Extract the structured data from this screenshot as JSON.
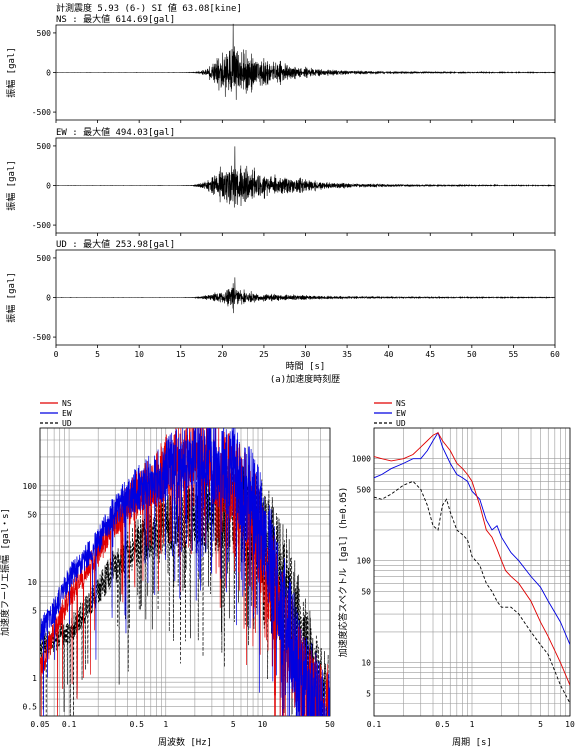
{
  "header": {
    "line1": "計測震度 5.93 (6-)  SI 値  63.08[kine]"
  },
  "chart_data": [
    {
      "type": "line",
      "panel": "NS",
      "label": "NS : 最大値    614.69[gal]",
      "ylabel": "振幅 [gal]",
      "ylim": [
        -600,
        600
      ],
      "yticks": [
        -500,
        0,
        500
      ],
      "xlim": [
        0,
        60
      ],
      "onset": 16,
      "peak_time": 21.3,
      "peak": 614.69,
      "envelope": [
        [
          0,
          0.4
        ],
        [
          15,
          0.5
        ],
        [
          16.5,
          4
        ],
        [
          18,
          60
        ],
        [
          19,
          200
        ],
        [
          20,
          360
        ],
        [
          21,
          480
        ],
        [
          21.3,
          614.69
        ],
        [
          22,
          420
        ],
        [
          23,
          330
        ],
        [
          24,
          290
        ],
        [
          25,
          250
        ],
        [
          26,
          200
        ],
        [
          27,
          170
        ],
        [
          28,
          130
        ],
        [
          30,
          85
        ],
        [
          33,
          50
        ],
        [
          36,
          32
        ],
        [
          40,
          22
        ],
        [
          45,
          14
        ],
        [
          50,
          10
        ],
        [
          55,
          7
        ],
        [
          60,
          5
        ]
      ],
      "seed": 11
    },
    {
      "type": "line",
      "panel": "EW",
      "label": "EW : 最大値    494.03[gal]",
      "ylabel": "振幅 [gal]",
      "ylim": [
        -600,
        600
      ],
      "yticks": [
        -500,
        0,
        500
      ],
      "xlim": [
        0,
        60
      ],
      "onset": 16,
      "peak_time": 21.5,
      "peak": 494.03,
      "envelope": [
        [
          0,
          0.4
        ],
        [
          15,
          0.5
        ],
        [
          16.5,
          4
        ],
        [
          18,
          70
        ],
        [
          19,
          180
        ],
        [
          20,
          300
        ],
        [
          21,
          420
        ],
        [
          21.5,
          494.03
        ],
        [
          22,
          380
        ],
        [
          23,
          330
        ],
        [
          24,
          290
        ],
        [
          25,
          250
        ],
        [
          26,
          210
        ],
        [
          27,
          180
        ],
        [
          28,
          150
        ],
        [
          30,
          100
        ],
        [
          33,
          60
        ],
        [
          36,
          38
        ],
        [
          40,
          25
        ],
        [
          45,
          16
        ],
        [
          50,
          11
        ],
        [
          55,
          8
        ],
        [
          60,
          6
        ]
      ],
      "seed": 23
    },
    {
      "type": "line",
      "panel": "UD",
      "label": "UD : 最大値    253.98[gal]",
      "ylabel": "振幅 [gal]",
      "ylim": [
        -600,
        600
      ],
      "yticks": [
        -500,
        0,
        500
      ],
      "xlim": [
        0,
        60
      ],
      "xticks": [
        0,
        5,
        10,
        15,
        20,
        25,
        30,
        35,
        40,
        45,
        50,
        55,
        60
      ],
      "xlabel": "時間 [s]",
      "onset": 16,
      "peak_time": 21.5,
      "peak": 253.98,
      "envelope": [
        [
          0,
          0.3
        ],
        [
          15,
          0.4
        ],
        [
          16.5,
          3
        ],
        [
          18,
          40
        ],
        [
          19,
          80
        ],
        [
          20,
          120
        ],
        [
          21,
          170
        ],
        [
          21.5,
          253.98
        ],
        [
          22,
          150
        ],
        [
          23,
          110
        ],
        [
          24,
          90
        ],
        [
          25,
          70
        ],
        [
          27,
          55
        ],
        [
          30,
          40
        ],
        [
          33,
          30
        ],
        [
          36,
          22
        ],
        [
          40,
          16
        ],
        [
          45,
          12
        ],
        [
          50,
          9
        ],
        [
          55,
          7
        ],
        [
          60,
          6
        ]
      ],
      "seed": 37
    },
    {
      "type": "line",
      "panel": "fourier",
      "xscale": "log",
      "yscale": "log",
      "xlim": [
        0.05,
        50
      ],
      "ylim": [
        0.4,
        400
      ],
      "xticks": [
        0.05,
        0.1,
        0.5,
        1,
        5,
        10,
        50
      ],
      "yticks": [
        0.5,
        1,
        5,
        10,
        50,
        100
      ],
      "xlabel": "周波数 [Hz]",
      "ylabel": "加速度フーリエ振幅 [gal・s]",
      "legend": "top-left",
      "series": [
        {
          "name": "NS",
          "color": "#e00000",
          "dash": "",
          "seed": 101,
          "ctrl": [
            [
              0.05,
              1.2
            ],
            [
              0.07,
              3
            ],
            [
              0.1,
              7
            ],
            [
              0.2,
              20
            ],
            [
              0.3,
              45
            ],
            [
              0.5,
              80
            ],
            [
              0.8,
              120
            ],
            [
              1.2,
              200
            ],
            [
              2,
              220
            ],
            [
              3,
              180
            ],
            [
              5,
              110
            ],
            [
              8,
              50
            ],
            [
              12,
              12
            ],
            [
              18,
              3
            ],
            [
              25,
              1
            ],
            [
              40,
              0.4
            ]
          ]
        },
        {
          "name": "EW",
          "color": "#0000e0",
          "dash": "",
          "seed": 202,
          "ctrl": [
            [
              0.05,
              3
            ],
            [
              0.07,
              5
            ],
            [
              0.1,
              11
            ],
            [
              0.2,
              26
            ],
            [
              0.3,
              55
            ],
            [
              0.5,
              90
            ],
            [
              0.8,
              120
            ],
            [
              1.2,
              170
            ],
            [
              2,
              210
            ],
            [
              3,
              190
            ],
            [
              5,
              140
            ],
            [
              8,
              70
            ],
            [
              12,
              18
            ],
            [
              18,
              4
            ],
            [
              25,
              1.2
            ],
            [
              40,
              0.4
            ]
          ]
        },
        {
          "name": "UD",
          "color": "#000000",
          "dash": "3,2",
          "seed": 303,
          "ctrl": [
            [
              0.05,
              2
            ],
            [
              0.07,
              2.5
            ],
            [
              0.1,
              3
            ],
            [
              0.2,
              8
            ],
            [
              0.3,
              15
            ],
            [
              0.5,
              25
            ],
            [
              0.8,
              35
            ],
            [
              1.2,
              45
            ],
            [
              2,
              50
            ],
            [
              3,
              55
            ],
            [
              5,
              60
            ],
            [
              8,
              45
            ],
            [
              12,
              25
            ],
            [
              18,
              10
            ],
            [
              25,
              3
            ],
            [
              40,
              0.6
            ]
          ]
        }
      ]
    },
    {
      "type": "line",
      "panel": "response",
      "xscale": "log",
      "yscale": "log",
      "xlim": [
        0.1,
        10
      ],
      "ylim": [
        3,
        2000
      ],
      "xticks": [
        0.1,
        0.5,
        1,
        5,
        10
      ],
      "yticks": [
        5,
        10,
        50,
        100,
        500,
        1000
      ],
      "xlabel": "周期 [s]",
      "ylabel": "加速度応答スペクトル [gal] (h=0.05)",
      "legend": "top-left",
      "series": [
        {
          "name": "NS",
          "color": "#e00000",
          "dash": "",
          "points": [
            [
              0.1,
              1050
            ],
            [
              0.12,
              1000
            ],
            [
              0.15,
              950
            ],
            [
              0.2,
              1000
            ],
            [
              0.25,
              1100
            ],
            [
              0.3,
              1300
            ],
            [
              0.35,
              1500
            ],
            [
              0.4,
              1700
            ],
            [
              0.45,
              1800
            ],
            [
              0.5,
              1500
            ],
            [
              0.6,
              1200
            ],
            [
              0.7,
              900
            ],
            [
              0.8,
              800
            ],
            [
              0.9,
              700
            ],
            [
              1.0,
              600
            ],
            [
              1.2,
              350
            ],
            [
              1.4,
              200
            ],
            [
              1.6,
              170
            ],
            [
              1.8,
              130
            ],
            [
              2.0,
              100
            ],
            [
              2.2,
              80
            ],
            [
              2.5,
              70
            ],
            [
              3.0,
              60
            ],
            [
              4.0,
              40
            ],
            [
              5.0,
              25
            ],
            [
              6.0,
              18
            ],
            [
              8.0,
              10
            ],
            [
              10,
              6
            ]
          ]
        },
        {
          "name": "EW",
          "color": "#0000e0",
          "dash": "",
          "points": [
            [
              0.1,
              650
            ],
            [
              0.12,
              700
            ],
            [
              0.15,
              800
            ],
            [
              0.2,
              900
            ],
            [
              0.25,
              1000
            ],
            [
              0.3,
              1000
            ],
            [
              0.35,
              1200
            ],
            [
              0.4,
              1500
            ],
            [
              0.45,
              1800
            ],
            [
              0.5,
              1300
            ],
            [
              0.6,
              900
            ],
            [
              0.7,
              700
            ],
            [
              0.8,
              650
            ],
            [
              0.9,
              600
            ],
            [
              1.0,
              480
            ],
            [
              1.2,
              400
            ],
            [
              1.4,
              250
            ],
            [
              1.6,
              200
            ],
            [
              1.8,
              220
            ],
            [
              2.0,
              170
            ],
            [
              2.5,
              120
            ],
            [
              3.0,
              100
            ],
            [
              4.0,
              70
            ],
            [
              5.0,
              55
            ],
            [
              6.0,
              40
            ],
            [
              8.0,
              25
            ],
            [
              10,
              15
            ]
          ]
        },
        {
          "name": "UD",
          "color": "#000000",
          "dash": "3,2",
          "points": [
            [
              0.1,
              420
            ],
            [
              0.12,
              400
            ],
            [
              0.15,
              450
            ],
            [
              0.2,
              550
            ],
            [
              0.25,
              600
            ],
            [
              0.3,
              500
            ],
            [
              0.35,
              350
            ],
            [
              0.4,
              220
            ],
            [
              0.45,
              200
            ],
            [
              0.5,
              350
            ],
            [
              0.55,
              400
            ],
            [
              0.6,
              300
            ],
            [
              0.7,
              200
            ],
            [
              0.8,
              180
            ],
            [
              0.9,
              160
            ],
            [
              1.0,
              110
            ],
            [
              1.2,
              90
            ],
            [
              1.4,
              60
            ],
            [
              1.6,
              50
            ],
            [
              1.8,
              40
            ],
            [
              2.0,
              35
            ],
            [
              2.5,
              35
            ],
            [
              3.0,
              30
            ],
            [
              4.0,
              20
            ],
            [
              5.0,
              15
            ],
            [
              6.0,
              12
            ],
            [
              8.0,
              6
            ],
            [
              10,
              4
            ]
          ]
        }
      ]
    }
  ],
  "captions": {
    "a": "(a)加速度時刻歴"
  }
}
